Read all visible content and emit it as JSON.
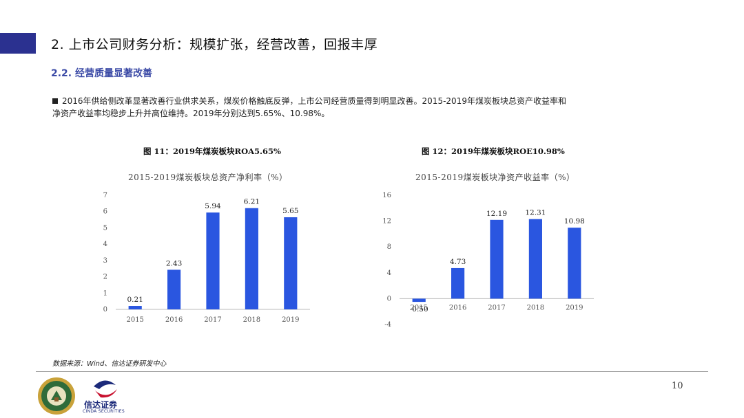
{
  "header": {
    "section_title": "2. 上市公司财务分析：规模扩张，经营改善，回报丰厚",
    "subsection_title": "2.2. 经营质量显著改善"
  },
  "bullet": {
    "line1": "2016年供给侧改革显著改善行业供求关系，煤炭价格触底反弹，上市公司经营质量得到明显改善。2015-2019年煤炭板块总资产收益率和",
    "line2": "净资产收益率均稳步上升并高位维持。2019年分别达到5.65%、10.98%。"
  },
  "colors": {
    "bar": "#2a56e0",
    "accent": "#2b3190",
    "grid": "#cccccc"
  },
  "chart_data": [
    {
      "type": "bar",
      "caption": "图 11：2019年煤炭板块ROA5.65%",
      "title": "2015-2019煤炭板块总资产净利率（%）",
      "categories": [
        "2015",
        "2016",
        "2017",
        "2018",
        "2019"
      ],
      "values": [
        0.21,
        2.43,
        5.94,
        6.21,
        5.65
      ],
      "value_labels": [
        "0.21",
        "2.43",
        "5.94",
        "6.21",
        "5.65"
      ],
      "ylim": [
        0,
        7
      ],
      "yticks": [
        0,
        1,
        2,
        3,
        4,
        5,
        6,
        7
      ],
      "xlabel": "",
      "ylabel": ""
    },
    {
      "type": "bar",
      "caption": "图 12：2019年煤炭板块ROE10.98%",
      "title": "2015-2019煤炭板块净资产收益率（%）",
      "categories": [
        "2015",
        "2016",
        "2017",
        "2018",
        "2019"
      ],
      "values": [
        -0.5,
        4.73,
        12.19,
        12.31,
        10.98
      ],
      "value_labels": [
        "-0.50",
        "4.73",
        "12.19",
        "12.31",
        "10.98"
      ],
      "ylim": [
        -4,
        16
      ],
      "yticks": [
        -4,
        0,
        4,
        8,
        12,
        16
      ],
      "xlabel": "",
      "ylabel": ""
    }
  ],
  "footer": {
    "source": "数据来源：Wind、信达证券研发中心",
    "page_number": "10",
    "brand_name": "信达证券",
    "brand_en": "CINDA SECURITIES"
  }
}
